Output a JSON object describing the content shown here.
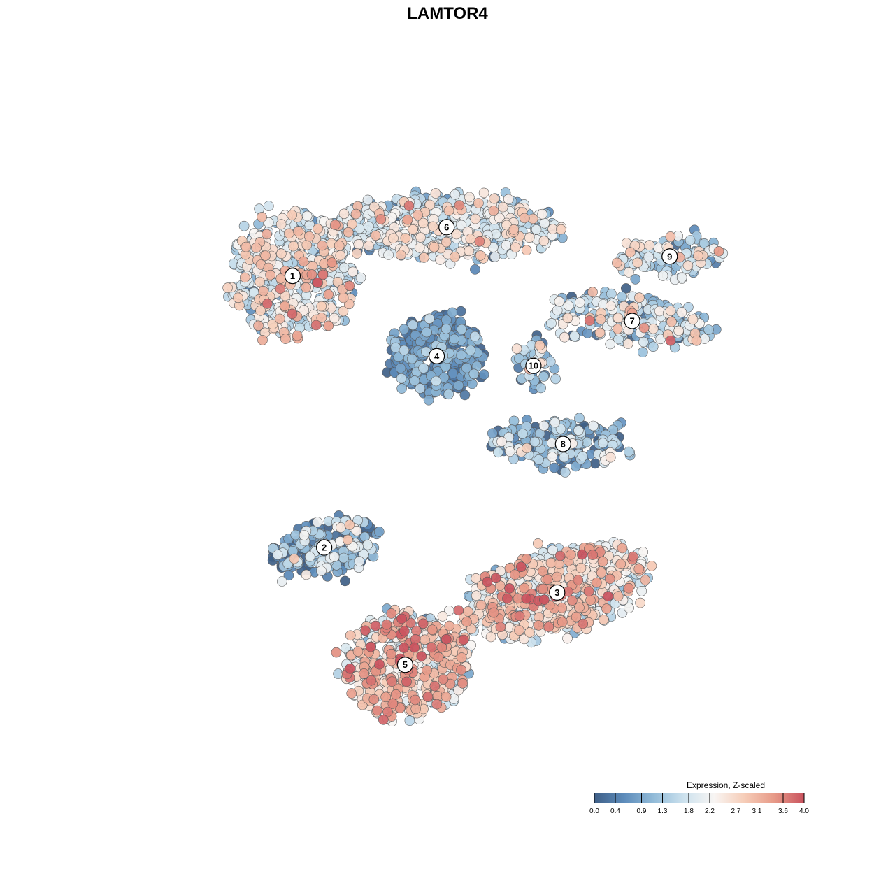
{
  "chart_data": {
    "type": "scatter",
    "title": "LAMTOR4",
    "xlabel": "",
    "ylabel": "",
    "grid": false,
    "axes_visible": false,
    "colorbar": {
      "title": "Expression, Z-scaled",
      "min": 0.0,
      "max": 4.0,
      "ticks": [
        "0.0",
        "0.4",
        "0.9",
        "1.3",
        "1.8",
        "2.2",
        "2.7",
        "3.1",
        "3.6",
        "4.0"
      ],
      "tick_values": [
        0.0,
        0.4,
        0.9,
        1.3,
        1.8,
        2.2,
        2.7,
        3.1,
        3.6,
        4.0
      ],
      "colors": [
        "#3f5f87",
        "#5d8cbb",
        "#93bcd9",
        "#cde2ee",
        "#f8f5f3",
        "#f6cdb8",
        "#e79a88",
        "#c9525e"
      ],
      "placement": "bottom-right"
    },
    "clusters": [
      {
        "label": "1",
        "x": -8.2,
        "y": 5.6,
        "sx": 2.9,
        "sy": 3.0,
        "n": 520,
        "mean": 1.9,
        "sd": 0.8,
        "rot": 0.05
      },
      {
        "label": "6",
        "x": -0.4,
        "y": 8.1,
        "sx": 5.6,
        "sy": 1.5,
        "n": 560,
        "mean": 1.8,
        "sd": 0.7,
        "rot": 0.02
      },
      {
        "label": "4",
        "x": -0.9,
        "y": 1.5,
        "sx": 2.2,
        "sy": 1.9,
        "n": 330,
        "mean": 0.5,
        "sd": 0.5,
        "rot": 0.0
      },
      {
        "label": "10",
        "x": 4.0,
        "y": 1.0,
        "sx": 0.9,
        "sy": 1.1,
        "n": 45,
        "mean": 1.3,
        "sd": 0.7,
        "rot": 0.0
      },
      {
        "label": "7",
        "x": 9.0,
        "y": 3.3,
        "sx": 4.2,
        "sy": 1.1,
        "n": 230,
        "mean": 1.5,
        "sd": 0.8,
        "rot": -0.12
      },
      {
        "label": "9",
        "x": 10.9,
        "y": 6.6,
        "sx": 2.6,
        "sy": 0.9,
        "n": 110,
        "mean": 1.5,
        "sd": 0.8,
        "rot": 0.08
      },
      {
        "label": "8",
        "x": 5.5,
        "y": -3.0,
        "sx": 3.4,
        "sy": 1.1,
        "n": 210,
        "mean": 0.9,
        "sd": 0.7,
        "rot": -0.05
      },
      {
        "label": "2",
        "x": -6.6,
        "y": -8.3,
        "sx": 2.7,
        "sy": 1.3,
        "n": 230,
        "mean": 0.9,
        "sd": 0.8,
        "rot": 0.25
      },
      {
        "label": "3",
        "x": 5.2,
        "y": -10.6,
        "sx": 4.6,
        "sy": 2.0,
        "n": 640,
        "mean": 2.3,
        "sd": 0.8,
        "rot": 0.28
      },
      {
        "label": "5",
        "x": -2.5,
        "y": -14.3,
        "sx": 3.0,
        "sy": 2.5,
        "n": 560,
        "mean": 2.4,
        "sd": 0.8,
        "rot": 0.2
      }
    ],
    "x_range": [
      -17,
      17
    ],
    "y_range": [
      -20,
      14
    ]
  }
}
